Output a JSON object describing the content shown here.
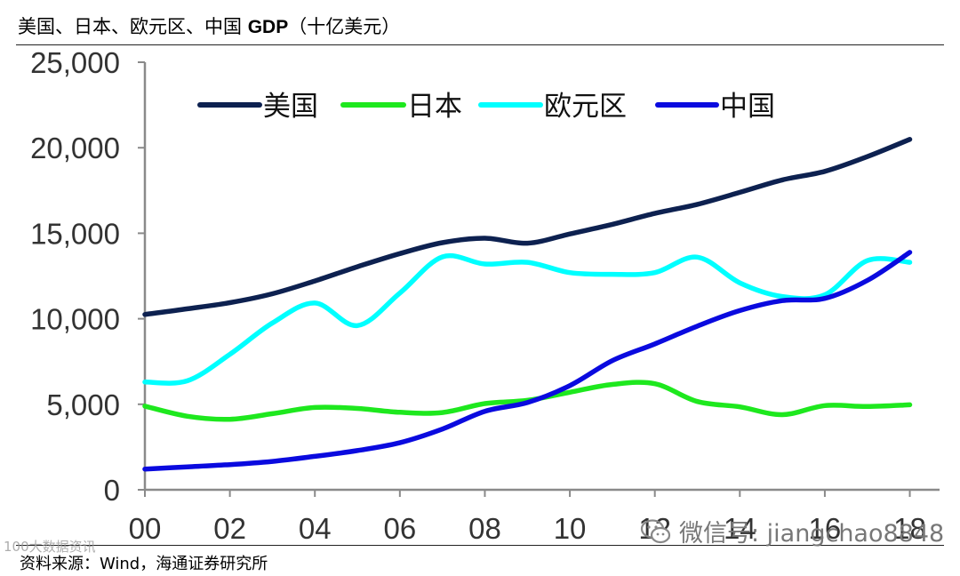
{
  "title": {
    "text_prefix": "美国、日本、欧元区、中国 ",
    "text_bold": "GDP",
    "text_suffix": "（十亿美元）"
  },
  "source": "资料来源：Wind，海通证券研究所",
  "watermark": {
    "text": "微信号: jiangchao8848",
    "icon": "wechat-icon"
  },
  "corner_mark": "100大数据资讯",
  "chart_data": {
    "type": "line",
    "title": "美国、日本、欧元区、中国 GDP（十亿美元）",
    "xlabel": "",
    "ylabel": "",
    "x": [
      2000,
      2001,
      2002,
      2003,
      2004,
      2005,
      2006,
      2007,
      2008,
      2009,
      2010,
      2011,
      2012,
      2013,
      2014,
      2015,
      2016,
      2017,
      2018
    ],
    "xlim": [
      2000,
      2018.7
    ],
    "xticks": [
      2000,
      2002,
      2004,
      2006,
      2008,
      2010,
      2012,
      2014,
      2016,
      2018
    ],
    "xtick_labels": [
      "00",
      "02",
      "04",
      "06",
      "08",
      "10",
      "12",
      "14",
      "16",
      "18"
    ],
    "ylim": [
      0,
      25000
    ],
    "yticks": [
      0,
      5000,
      10000,
      15000,
      20000,
      25000
    ],
    "ytick_labels": [
      "0",
      "5,000",
      "10,000",
      "15,000",
      "20,000",
      "25,000"
    ],
    "grid": false,
    "legend_position": "top",
    "series": [
      {
        "name": "美国",
        "color": "#0d2150",
        "values": [
          10250,
          10580,
          10940,
          11460,
          12210,
          13040,
          13810,
          14450,
          14710,
          14420,
          14960,
          15520,
          16160,
          16690,
          17390,
          18120,
          18620,
          19480,
          20490
        ]
      },
      {
        "name": "日本",
        "color": "#1ee81e",
        "values": [
          4890,
          4300,
          4120,
          4450,
          4815,
          4755,
          4530,
          4515,
          5040,
          5230,
          5700,
          6160,
          6200,
          5160,
          4850,
          4390,
          4920,
          4870,
          4970
        ]
      },
      {
        "name": "欧元区",
        "color": "#00ffff",
        "values": [
          6300,
          6370,
          7920,
          9750,
          10920,
          9600,
          11500,
          13620,
          13200,
          13300,
          12700,
          12600,
          12700,
          13600,
          12100,
          11300,
          11400,
          13400,
          13300
        ]
      },
      {
        "name": "中国",
        "color": "#0a0adf",
        "values": [
          1210,
          1340,
          1470,
          1660,
          1955,
          2290,
          2750,
          3550,
          4590,
          5100,
          6090,
          7550,
          8530,
          9570,
          10480,
          11060,
          11190,
          12240,
          13880
        ]
      }
    ]
  }
}
